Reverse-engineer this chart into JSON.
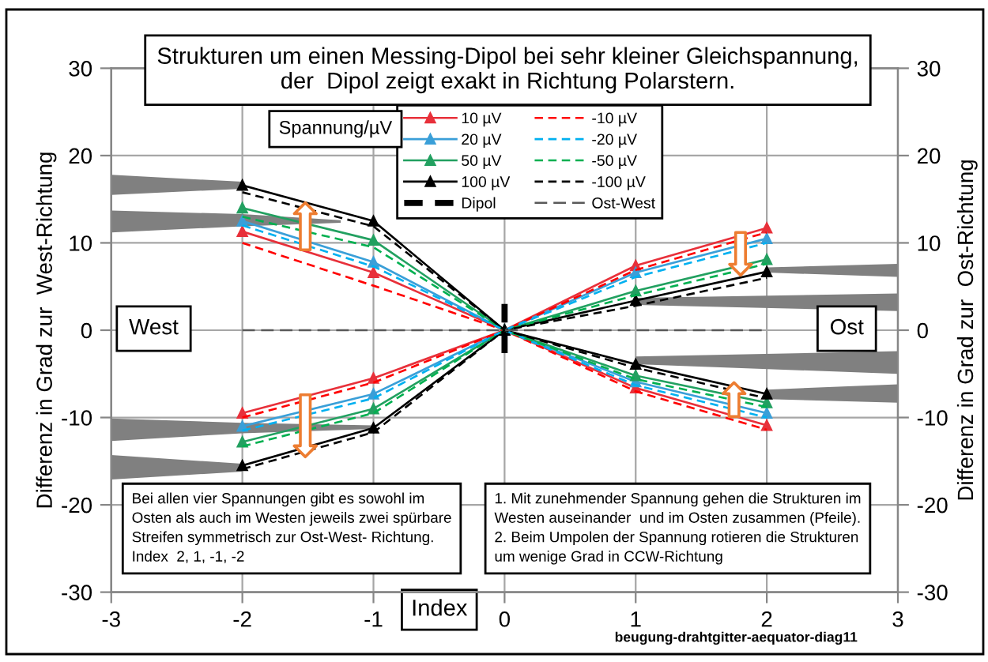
{
  "chart_data": {
    "type": "line",
    "title": "Strukturen um einen Messing-Dipol bei sehr kleiner Gleichspannung,\nder  Dipol zeigt exakt in Richtung Polarstern.",
    "xlabel": "Index",
    "ylabel": "Differenz in Grad zur  West-Richtung",
    "y2label": "Differenz in Grad zur  Ost-Richtung",
    "legend_title": "Spannung/µV",
    "xlim": [
      -3,
      3
    ],
    "xticks": [
      -3,
      -2,
      -1,
      0,
      1,
      2,
      3
    ],
    "ylim": [
      -30,
      30
    ],
    "yticks": [
      -30,
      -20,
      -10,
      0,
      10,
      20,
      30
    ],
    "y2lim": [
      -30,
      30
    ],
    "y2ticks": [
      -30,
      -20,
      -10,
      0,
      10,
      20,
      30
    ],
    "grid": true,
    "legend": "top",
    "series": [
      {
        "name": "10 µV",
        "color": "#e8303a",
        "line_style": "solid",
        "marker": "triangle",
        "x": [
          -2,
          -1,
          0,
          1,
          2
        ],
        "values": [
          11.3,
          6.6,
          0,
          7.4,
          11.7
        ]
      },
      {
        "color": "#e8303a",
        "line_style": "solid",
        "marker": "triangle",
        "x": [
          -2,
          -1,
          0,
          1,
          2
        ],
        "values": [
          -9.5,
          -5.5,
          0,
          -6.6,
          -10.9
        ]
      },
      {
        "name": "20 µV",
        "color": "#3a9fd8",
        "line_style": "solid",
        "marker": "triangle",
        "x": [
          -2,
          -1,
          0,
          1,
          2
        ],
        "values": [
          12.5,
          7.8,
          0,
          6.6,
          10.5
        ]
      },
      {
        "color": "#3a9fd8",
        "line_style": "solid",
        "marker": "triangle",
        "x": [
          -2,
          -1,
          0,
          1,
          2
        ],
        "values": [
          -11.0,
          -7.3,
          0,
          -5.9,
          -9.5
        ]
      },
      {
        "name": "50 µV",
        "color": "#22a060",
        "line_style": "solid",
        "marker": "triangle",
        "x": [
          -2,
          -1,
          0,
          1,
          2
        ],
        "values": [
          14.0,
          10.3,
          0,
          4.5,
          8.1
        ]
      },
      {
        "color": "#22a060",
        "line_style": "solid",
        "marker": "triangle",
        "x": [
          -2,
          -1,
          0,
          1,
          2
        ],
        "values": [
          -12.8,
          -9.0,
          0,
          -5.2,
          -8.3
        ]
      },
      {
        "name": "100 µV",
        "color": "#000000",
        "line_style": "solid",
        "marker": "triangle",
        "x": [
          -2,
          -1,
          0,
          1,
          2
        ],
        "values": [
          16.6,
          12.5,
          0,
          3.4,
          6.7
        ]
      },
      {
        "color": "#000000",
        "line_style": "solid",
        "marker": "triangle",
        "x": [
          -2,
          -1,
          0,
          1,
          2
        ],
        "values": [
          -15.5,
          -11.2,
          0,
          -3.9,
          -7.3
        ]
      },
      {
        "name": "Dipol",
        "color": "#000000",
        "line_style": "dashed",
        "marker": "none",
        "x": [
          0,
          0
        ],
        "values": [
          3,
          -3
        ]
      },
      {
        "name": "-10 µV",
        "color": "#ff0000",
        "line_style": "dashed",
        "marker": "none",
        "x": [
          -2,
          -1,
          0,
          1,
          2
        ],
        "values": [
          10.0,
          5.1,
          0,
          6.9,
          11.2
        ]
      },
      {
        "color": "#ff0000",
        "line_style": "dashed",
        "marker": "none",
        "x": [
          -2,
          -1,
          0,
          1,
          2
        ],
        "values": [
          -10.0,
          -6.0,
          0,
          -7.0,
          -11.4
        ]
      },
      {
        "name": "-20 µV",
        "color": "#00b0f0",
        "line_style": "dashed",
        "marker": "none",
        "x": [
          -2,
          -1,
          0,
          1,
          2
        ],
        "values": [
          12.0,
          7.3,
          0,
          6.1,
          10.0
        ]
      },
      {
        "color": "#00b0f0",
        "line_style": "dashed",
        "marker": "none",
        "x": [
          -2,
          -1,
          0,
          1,
          2
        ],
        "values": [
          -11.5,
          -7.8,
          0,
          -6.3,
          -10.0
        ]
      },
      {
        "name": "-50 µV",
        "color": "#00b050",
        "line_style": "dashed",
        "marker": "none",
        "x": [
          -2,
          -1,
          0,
          1,
          2
        ],
        "values": [
          13.0,
          9.5,
          0,
          4.0,
          7.6
        ]
      },
      {
        "color": "#00b050",
        "line_style": "dashed",
        "marker": "none",
        "x": [
          -2,
          -1,
          0,
          1,
          2
        ],
        "values": [
          -13.3,
          -9.5,
          0,
          -5.6,
          -8.8
        ]
      },
      {
        "name": "-100 µV",
        "color": "#000000",
        "line_style": "dashed",
        "marker": "none",
        "x": [
          -2,
          -1,
          0,
          1,
          2
        ],
        "values": [
          15.8,
          11.9,
          0,
          2.8,
          6.0
        ]
      },
      {
        "color": "#000000",
        "line_style": "dashed",
        "marker": "none",
        "x": [
          -2,
          -1,
          0,
          1,
          2
        ],
        "values": [
          -15.9,
          -11.7,
          0,
          -4.3,
          -7.8
        ]
      },
      {
        "name": "Ost-West",
        "color": "#595959",
        "line_style": "dashed",
        "marker": "none",
        "x": [
          -2,
          2
        ],
        "values": [
          0,
          0
        ]
      }
    ],
    "annotations": [
      "West",
      "Ost",
      "Bei allen vier Spannungen gibt es sowohl im\nOsten als auch im Westen jeweils zwei spürbare\nStreifen symmetrisch zur Ost-West- Richtung.\nIndex  2, 1, -1, -2",
      "1. Mit zunehmender Spannung gehen die Strukturen im\nWesten auseinander  und im Osten zusammen (Pfeile).\n2. Beim Umpolen der Spannung rotieren die Strukturen\num wenige Grad in CCW-Richtung",
      "beugung-drahtgitter-aequator-diag11"
    ]
  }
}
